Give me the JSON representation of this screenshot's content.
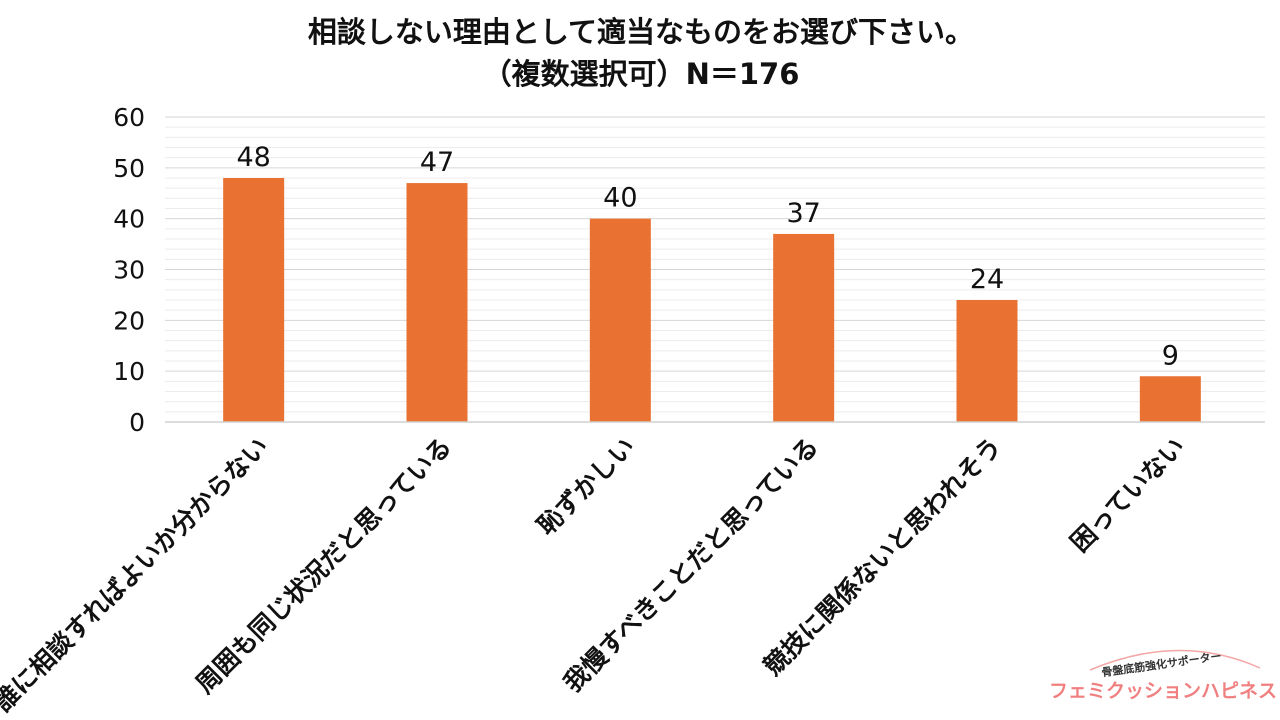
{
  "chart_data": {
    "type": "bar",
    "title": "相談しない理由として適当なものをお選び下さい。",
    "subtitle": "（複数選択可）N＝176",
    "categories": [
      "誰に相談すればよいか分からない",
      "周囲も同じ状況だと思っている",
      "恥ずかしい",
      "我慢すべきことだと思っている",
      "競技に関係ないと思われそう",
      "困っていない"
    ],
    "values": [
      48,
      47,
      40,
      37,
      24,
      9
    ],
    "ylim": [
      0,
      60
    ],
    "yticks": [
      0,
      10,
      20,
      30,
      40,
      50,
      60
    ],
    "grid": true,
    "legend": "none",
    "bar_color": "#E97132"
  },
  "logo": {
    "tagline": "骨盤底筋強化サポーター",
    "name": "フェミクッションハピネス",
    "color": "#F08080"
  }
}
